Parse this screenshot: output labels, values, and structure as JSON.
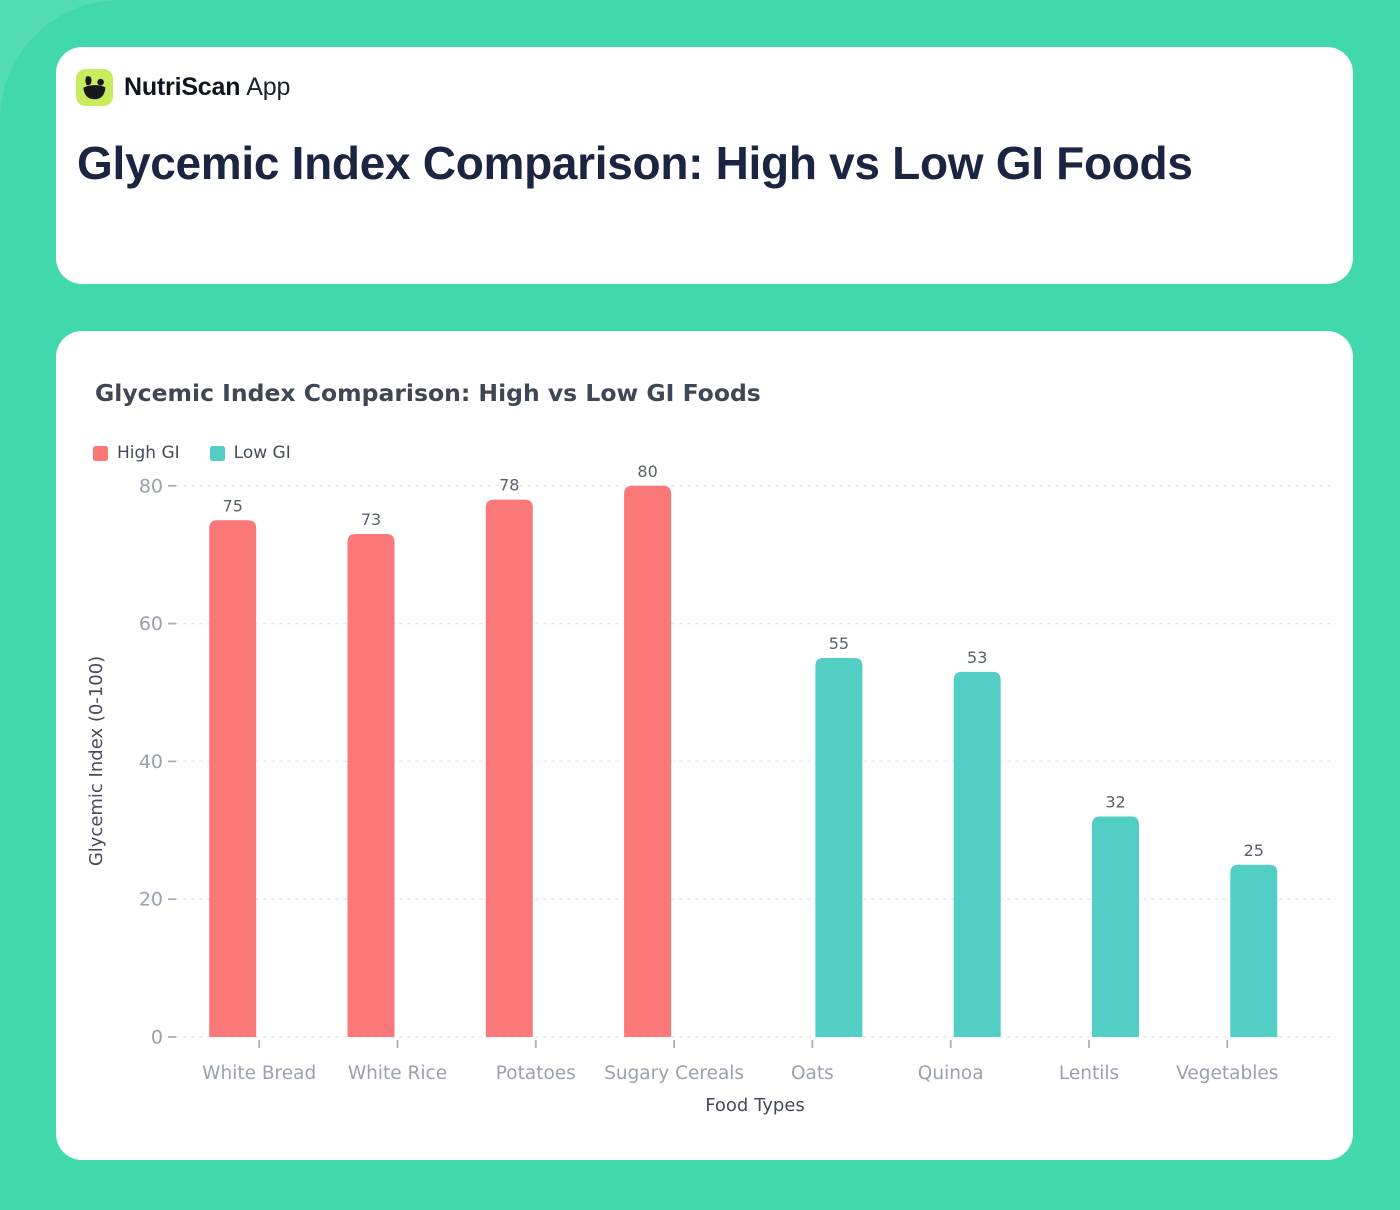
{
  "theme": {
    "background": "#41d8ac",
    "card": "#ffffff",
    "logo_background": "#c9ec5e",
    "title_color": "#1b2440"
  },
  "app": {
    "brand_bold": "NutriScan",
    "brand_light": "App",
    "page_title": "Glycemic Index Comparison: High vs Low GI Foods"
  },
  "chart_data": {
    "type": "bar",
    "title": "Glycemic Index Comparison: High vs Low GI Foods",
    "categories": [
      "White Bread",
      "White Rice",
      "Potatoes",
      "Sugary Cereals",
      "Oats",
      "Quinoa",
      "Lentils",
      "Vegetables"
    ],
    "series": [
      {
        "name": "High GI",
        "color": "#fa7878",
        "values": [
          75,
          73,
          78,
          80,
          null,
          null,
          null,
          null
        ]
      },
      {
        "name": "Low GI",
        "color": "#52cec5",
        "values": [
          null,
          null,
          null,
          null,
          55,
          53,
          32,
          25
        ]
      }
    ],
    "xlabel": "Food Types",
    "ylabel": "Glycemic Index (0-100)",
    "ylim": [
      0,
      80
    ],
    "yticks": [
      0,
      20,
      40,
      60,
      80
    ],
    "grid": true,
    "grid_style": "dashed",
    "legend_position": "top-left",
    "value_labels": true
  }
}
